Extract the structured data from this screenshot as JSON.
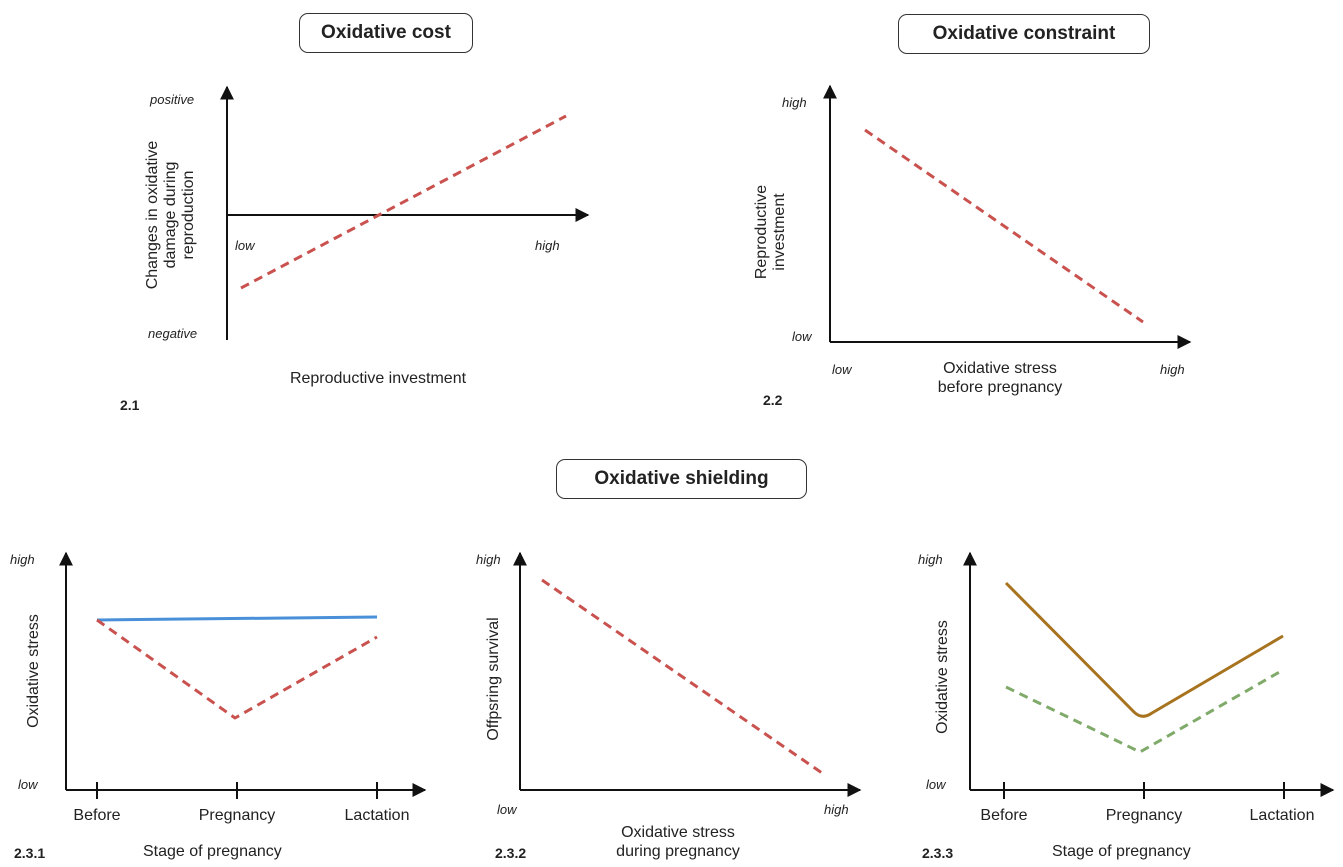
{
  "titles": {
    "cost": "Oxidative cost",
    "constraint": "Oxidative constraint",
    "shielding": "Oxidative shielding"
  },
  "panel_2_1": {
    "number": "2.1",
    "x_label": "Reproductive investment",
    "y_label_line1": "Changes in oxidative",
    "y_label_line2": "damage during",
    "y_label_line3": "reproduction",
    "y_top": "positive",
    "y_bottom": "negative",
    "x_low": "low",
    "x_high": "high"
  },
  "panel_2_2": {
    "number": "2.2",
    "x_label_line1": "Oxidative stress",
    "x_label_line2": "before pregnancy",
    "y_label_line1": "Reproductive",
    "y_label_line2": "investment",
    "y_high": "high",
    "y_low": "low",
    "x_low": "low",
    "x_high": "high"
  },
  "panel_2_3_1": {
    "number": "2.3.1",
    "x_label": "Stage of pregnancy",
    "y_label": "Oxidative stress",
    "y_high": "high",
    "y_low": "low",
    "ticks": [
      "Before",
      "Pregnancy",
      "Lactation"
    ]
  },
  "panel_2_3_2": {
    "number": "2.3.2",
    "x_label_line1": "Oxidative stress",
    "x_label_line2": "during pregnancy",
    "y_label": "Offpsring survival",
    "y_high": "high",
    "x_low": "low",
    "x_high": "high"
  },
  "panel_2_3_3": {
    "number": "2.3.3",
    "x_label": "Stage of pregnancy",
    "y_label": "Oxidative stress",
    "y_high": "high",
    "y_low": "low",
    "ticks": [
      "Before",
      "Pregnancy",
      "Lactation"
    ]
  },
  "colors": {
    "axis": "#111111",
    "red_dashed": "#c9524f",
    "blue": "#4a90d9",
    "brown": "#a8731f",
    "green_dashed": "#7faa6a"
  }
}
